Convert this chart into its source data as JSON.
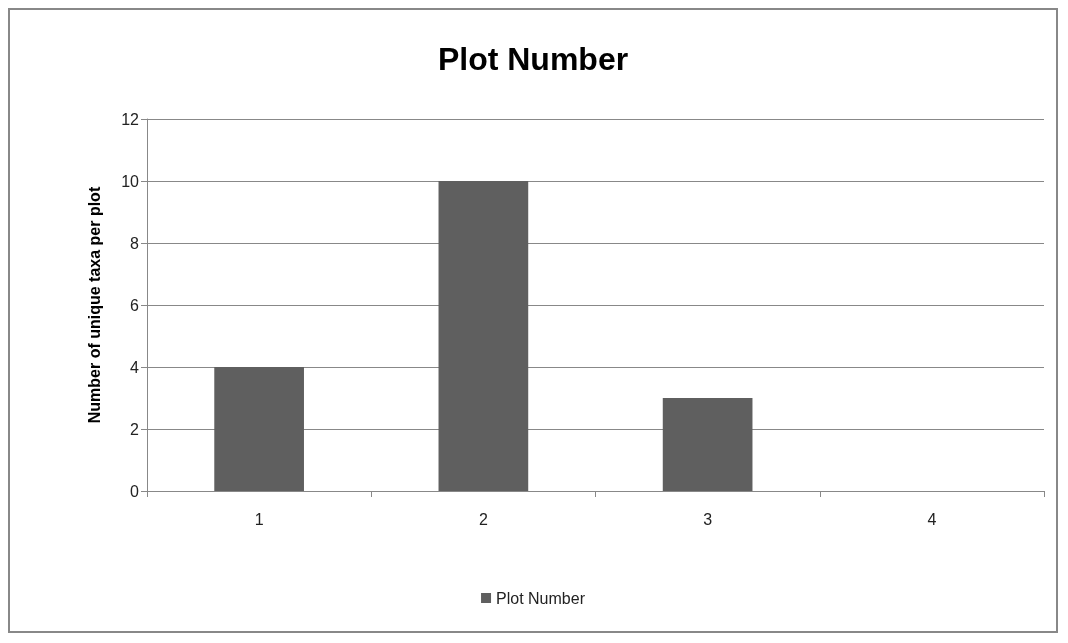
{
  "chart_data": {
    "type": "bar",
    "title": "Plot Number",
    "ylabel": "Number of unique taxa per plot",
    "categories": [
      "1",
      "2",
      "3",
      "4"
    ],
    "series": [
      {
        "name": "Plot Number",
        "color": "#5f5f5f",
        "values": [
          4,
          10,
          3,
          0
        ]
      }
    ],
    "ylim": [
      0,
      12
    ],
    "yticks": [
      0,
      2,
      4,
      6,
      8,
      10,
      12
    ],
    "grid": "y",
    "legend": "bottom"
  }
}
